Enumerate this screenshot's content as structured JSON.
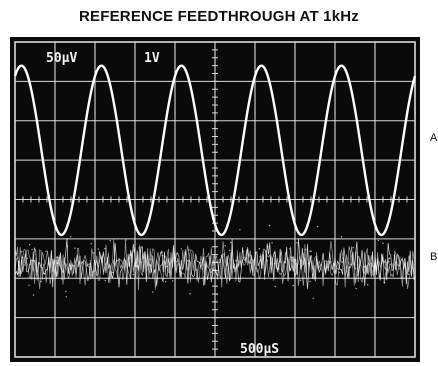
{
  "title": "REFERENCE FEEDTHROUGH AT 1kHz",
  "trace_labels": [
    "A",
    "B"
  ],
  "readouts": {
    "ch1_scale": "50µV",
    "ch2_scale": "1V",
    "time_base": "500µS"
  },
  "colors": {
    "screen": "#0a0a0a",
    "graticule": "#d9d9d9",
    "trace": "#ffffff"
  },
  "chart_data": {
    "type": "line",
    "title": "REFERENCE FEEDTHROUGH AT 1kHz",
    "xlabel": "",
    "ylabel": "",
    "divisions": {
      "x": 10,
      "y": 8
    },
    "grid": true,
    "series": [
      {
        "name": "A",
        "waveform": "sine",
        "frequency_hz": 1000,
        "scale_per_div": "1V",
        "peak_to_peak_div": 4.3,
        "center_div": 5.25
      },
      {
        "name": "B",
        "waveform": "noise",
        "scale_per_div": "50µV",
        "peak_to_peak_div": 1.4,
        "center_div": 2.35
      }
    ],
    "time_per_div": "500µS"
  }
}
